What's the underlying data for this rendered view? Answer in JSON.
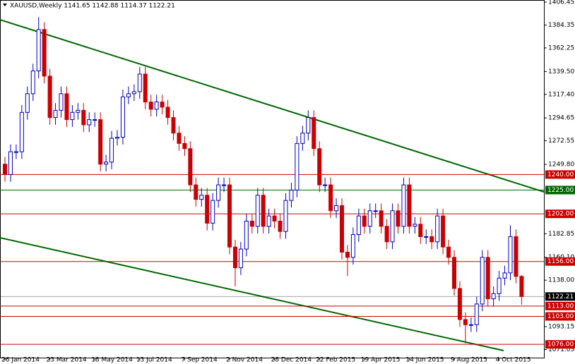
{
  "chart_data": {
    "type": "candlestick",
    "title": "XAUUSD,Weekly  1141.65 1142.88 1114.37 1122.21",
    "categories": [
      "26 Jan 2014",
      null,
      null,
      null,
      null,
      null,
      null,
      null,
      "23 Mar 2014",
      null,
      null,
      null,
      null,
      null,
      null,
      null,
      "18 May 2014",
      null,
      null,
      null,
      null,
      null,
      null,
      null,
      "13 Jul 2014",
      null,
      null,
      null,
      null,
      null,
      null,
      null,
      "7 Sep 2014",
      null,
      null,
      null,
      null,
      null,
      null,
      null,
      "2 Nov 2014",
      null,
      null,
      null,
      null,
      null,
      null,
      null,
      "28 Dec 2014",
      null,
      null,
      null,
      null,
      null,
      null,
      null,
      "22 Feb 2015",
      null,
      null,
      null,
      null,
      null,
      null,
      null,
      "19 Apr 2015",
      null,
      null,
      null,
      null,
      null,
      null,
      null,
      "14 Jun 2015",
      null,
      null,
      null,
      null,
      null,
      null,
      null,
      "9 Aug 2015",
      null,
      null,
      null,
      null,
      null,
      null,
      null,
      "4 Oct 2015",
      null,
      null,
      null,
      null
    ],
    "open": [
      1250,
      1240,
      1262,
      1262,
      1300,
      1318,
      1340,
      1380,
      1335,
      1295,
      1302,
      1318,
      1293,
      1300,
      1302,
      1288,
      1293,
      1293,
      1250,
      1252,
      1275,
      1276,
      1315,
      1318,
      1320,
      1337,
      1310,
      1303,
      1310,
      1305,
      1295,
      1280,
      1270,
      1265,
      1230,
      1216,
      1220,
      1193,
      1215,
      1230,
      1230,
      1170,
      1150,
      1168,
      1195,
      1190,
      1220,
      1190,
      1200,
      1195,
      1185,
      1215,
      1225,
      1270,
      1280,
      1295,
      1265,
      1230,
      1230,
      1205,
      1210,
      1165,
      1160,
      1182,
      1200,
      1190,
      1205,
      1205,
      1190,
      1175,
      1205,
      1190,
      1230,
      1190,
      1192,
      1180,
      1180,
      1175,
      1200,
      1170,
      1160,
      1130,
      1100,
      1095,
      1095,
      1115,
      1160,
      1120,
      1125,
      1140,
      1145,
      1180,
      1141.65
    ],
    "high": [
      1257,
      1269,
      1269,
      1307,
      1325,
      1347,
      1392,
      1387,
      1342,
      1309,
      1325,
      1325,
      1307,
      1309,
      1309,
      1300,
      1300,
      1300,
      1259,
      1282,
      1283,
      1322,
      1325,
      1327,
      1344,
      1344,
      1317,
      1317,
      1317,
      1312,
      1302,
      1287,
      1277,
      1272,
      1237,
      1227,
      1227,
      1222,
      1237,
      1237,
      1237,
      1177,
      1175,
      1202,
      1202,
      1227,
      1227,
      1207,
      1207,
      1202,
      1222,
      1232,
      1277,
      1287,
      1302,
      1302,
      1272,
      1237,
      1237,
      1217,
      1217,
      1172,
      1189,
      1207,
      1207,
      1212,
      1212,
      1212,
      1197,
      1212,
      1212,
      1237,
      1237,
      1199,
      1199,
      1187,
      1187,
      1207,
      1207,
      1177,
      1167,
      1137,
      1107,
      1102,
      1122,
      1167,
      1167,
      1132,
      1147,
      1152,
      1191,
      1187,
      1142.88
    ],
    "low": [
      1233,
      1233,
      1255,
      1255,
      1293,
      1311,
      1333,
      1328,
      1288,
      1288,
      1295,
      1286,
      1286,
      1293,
      1281,
      1281,
      1286,
      1243,
      1243,
      1245,
      1268,
      1269,
      1308,
      1311,
      1313,
      1303,
      1296,
      1296,
      1298,
      1288,
      1273,
      1263,
      1258,
      1223,
      1209,
      1209,
      1186,
      1186,
      1208,
      1223,
      1163,
      1132,
      1143,
      1161,
      1183,
      1183,
      1183,
      1183,
      1188,
      1178,
      1178,
      1208,
      1218,
      1263,
      1273,
      1258,
      1223,
      1223,
      1198,
      1198,
      1158,
      1142,
      1153,
      1175,
      1183,
      1183,
      1198,
      1183,
      1168,
      1168,
      1183,
      1183,
      1183,
      1183,
      1173,
      1173,
      1168,
      1168,
      1163,
      1153,
      1123,
      1093,
      1077,
      1088,
      1088,
      1108,
      1113,
      1113,
      1118,
      1133,
      1138,
      1135,
      1114.37
    ],
    "close": [
      1240,
      1262,
      1262,
      1300,
      1318,
      1340,
      1380,
      1335,
      1295,
      1302,
      1318,
      1293,
      1300,
      1302,
      1288,
      1293,
      1293,
      1250,
      1252,
      1275,
      1276,
      1315,
      1318,
      1320,
      1337,
      1310,
      1303,
      1310,
      1305,
      1295,
      1280,
      1270,
      1265,
      1230,
      1216,
      1220,
      1193,
      1215,
      1230,
      1230,
      1170,
      1150,
      1168,
      1195,
      1190,
      1220,
      1190,
      1200,
      1195,
      1185,
      1215,
      1225,
      1270,
      1280,
      1295,
      1265,
      1230,
      1230,
      1205,
      1210,
      1165,
      1160,
      1182,
      1200,
      1190,
      1205,
      1205,
      1190,
      1175,
      1205,
      1190,
      1230,
      1190,
      1192,
      1180,
      1180,
      1175,
      1200,
      1170,
      1160,
      1130,
      1100,
      1095,
      1095,
      1115,
      1160,
      1120,
      1125,
      1140,
      1145,
      1180,
      1141.65,
      1122.21
    ],
    "up_color": "#0000cc",
    "down_color": "#cc0000",
    "ylim": [
      1062.5,
      1408.5
    ],
    "yticks": [
      {
        "value": 1406.45,
        "label": "1406.45"
      },
      {
        "value": 1384.35,
        "label": "1384.35"
      },
      {
        "value": 1362.25,
        "label": "1362.25"
      },
      {
        "value": 1339.5,
        "label": "1339.50"
      },
      {
        "value": 1317.4,
        "label": "1317.40"
      },
      {
        "value": 1294.65,
        "label": "1294.65"
      },
      {
        "value": 1272.55,
        "label": "1272.55"
      },
      {
        "value": 1249.8,
        "label": "1249.80"
      },
      {
        "value": 1182.85,
        "label": "1182.85"
      },
      {
        "value": 1160.1,
        "label": "1160.10"
      },
      {
        "value": 1138,
        "label": "1138.00"
      },
      {
        "value": 1093.15,
        "label": "1093.15"
      },
      {
        "value": 1071.05,
        "label": "1071.05"
      }
    ],
    "levels": [
      {
        "value": 1240,
        "label": "1240.00",
        "color": "#cc0000"
      },
      {
        "value": 1225,
        "label": "1225.00",
        "color": "#006600"
      },
      {
        "value": 1202,
        "label": "1202.00",
        "color": "#cc0000"
      },
      {
        "value": 1156,
        "label": "1156.00",
        "color": "#cc0000"
      },
      {
        "value": 1122.21,
        "label": "1122.21",
        "color": "#000000"
      },
      {
        "value": 1113,
        "label": "1113.00",
        "color": "#cc0000"
      },
      {
        "value": 1103,
        "label": "1103.00",
        "color": "#cc0000"
      },
      {
        "value": 1076,
        "label": "1076.00",
        "color": "#cc0000"
      }
    ]
  }
}
